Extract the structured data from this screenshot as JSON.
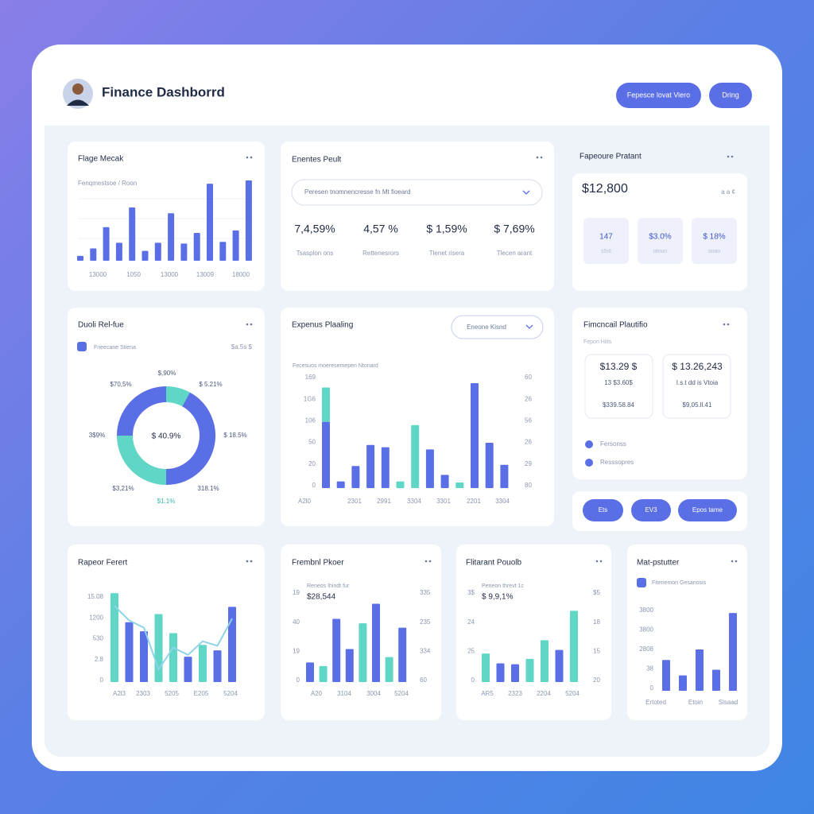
{
  "header": {
    "title": "Finance Dashborrd",
    "buttons": [
      "Fepesce lovat Viero",
      "Dring"
    ]
  },
  "panels": [
    {
      "title": "Flage Mecak",
      "subtitle": "Fenqmestsoe / Roon",
      "chart": {
        "type": "bar",
        "ylim": [
          0,
          100
        ],
        "series": [
          {
            "color": "#5a6fe6",
            "values": [
              6,
              15,
              41,
              22,
              65,
              12,
              22,
              58,
              21,
              34,
              94,
              23,
              37,
              98
            ]
          }
        ],
        "x_labels": [
          "13000",
          "1050",
          "13000",
          "13009",
          "18000"
        ]
      }
    },
    {
      "title": "Enentes Peult",
      "dropdown": "Peresen tnomnencresse fn Mt fioeard",
      "stats": [
        {
          "value": "7,4,59%",
          "label": "Tsasplon ons"
        },
        {
          "value": "4,57 %",
          "label": "Rettenesrors"
        },
        {
          "value": "$ 1,59%",
          "label": "Tlenet risera"
        },
        {
          "value": "$ 7,69%",
          "label": "Tlecen arant"
        }
      ]
    },
    {
      "title": "Fapeoure Pratant",
      "amount": "$12,800",
      "note": "a a ¢",
      "tiles": [
        {
          "value": "147",
          "label": "s5st"
        },
        {
          "value": "$3.0%",
          "label": "otoun"
        },
        {
          "value": "$ 18%",
          "label": "soan"
        }
      ]
    },
    {
      "title": "Duoli Rel-fue",
      "legend": "Fneecane Stiena",
      "note": "$a.5s $",
      "center": "$ 40.9%",
      "labels": [
        "$,90%",
        "$70,5%",
        "$ 5.21%",
        "3$9%",
        "$ 18.5%",
        "$3,21%",
        "318.1%",
        "$1.1%"
      ],
      "chart": {
        "type": "donut",
        "segments": [
          {
            "color": "#5fd6c6",
            "value": 8
          },
          {
            "color": "#5a6fe6",
            "value": 42
          },
          {
            "color": "#5fd6c6",
            "value": 25
          },
          {
            "color": "#5a6fe6",
            "value": 25
          }
        ]
      }
    },
    {
      "title": "Expenus Plaaling",
      "dropdown": "Eneone Kisnd",
      "subtitle": "Fecesuos moeresemepen Ntonard",
      "chart": {
        "type": "bar",
        "ylim": [
          0,
          100
        ],
        "series": [
          {
            "color": "#5a6fe6",
            "values": [
              60,
              6,
              20,
              39,
              37,
              null,
              null,
              35,
              12,
              null,
              95,
              41,
              21
            ]
          },
          {
            "color": "#5fd6c6",
            "values": [
              31,
              null,
              null,
              null,
              null,
              6,
              57,
              null,
              null,
              5,
              null,
              null,
              null
            ]
          }
        ],
        "y_labels": [
          "169",
          "1G6",
          "106",
          "50",
          "20",
          "0"
        ],
        "y2_labels": [
          "60",
          "26",
          "56",
          "26",
          "29",
          "80"
        ],
        "x_labels": [
          "A2l0",
          "2301",
          "2991",
          "3304",
          "3301",
          "2201",
          "3304"
        ]
      }
    },
    {
      "title": "Fimcncail Plautifio",
      "subtitle": "Fepon Hilts",
      "tiles": [
        {
          "lines": [
            "$13.29 $",
            "13 $3.60$",
            "$339.58.84"
          ]
        },
        {
          "lines": [
            "$ 13.26,243",
            "I.s.t dd is Vtoia",
            "$9,05.ll.41"
          ]
        }
      ],
      "legend": [
        "Fersonss",
        "Resssopres"
      ]
    },
    {
      "buttons": [
        "Ets",
        "EV3",
        "Epos tame"
      ]
    },
    {
      "title": "Rapeor Ferert",
      "chart": {
        "type": "bar",
        "ylim": [
          0,
          100
        ],
        "series": [
          {
            "color": "#5a6fe6",
            "values": [
              null,
              66,
              56,
              null,
              null,
              28,
              null,
              35,
              83
            ]
          },
          {
            "color": "#5fd6c6",
            "values": [
              98,
              null,
              null,
              75,
              54,
              null,
              41,
              null,
              null
            ]
          },
          {
            "type": "line",
            "color": "#8fd3e8",
            "values": [
              84,
              68,
              60,
              14,
              38,
              30,
              45,
              40,
              70
            ]
          }
        ],
        "y_labels": [
          "15.08",
          "1200",
          "530",
          "2.8",
          "0"
        ],
        "x_labels": [
          "A2l3",
          "2303",
          "5205",
          "E205",
          "5204"
        ]
      }
    },
    {
      "title": "Frembnl Pkoer",
      "subtitle": "Reneos Ihindt fur",
      "amount": "$28,544",
      "chart": {
        "type": "bar",
        "ylim": [
          0,
          100
        ],
        "series": [
          {
            "color": "#5a6fe6",
            "values": [
              22,
              null,
              71,
              37,
              null,
              88,
              null,
              61
            ]
          },
          {
            "color": "#5fd6c6",
            "values": [
              null,
              18,
              null,
              null,
              66,
              null,
              28,
              null
            ]
          }
        ],
        "y_labels": [
          "19",
          "40",
          "19",
          "0"
        ],
        "y2_labels": [
          "335",
          "235",
          "334",
          "60"
        ],
        "x_labels": [
          "A20",
          "3104",
          "3004",
          "5204"
        ]
      }
    },
    {
      "title": "Flitarant Pouolb",
      "subtitle": "Peneon threvt 1c",
      "amount": "$ 9,9,1%",
      "chart": {
        "type": "bar",
        "ylim": [
          0,
          100
        ],
        "series": [
          {
            "color": "#5a6fe6",
            "values": [
              null,
              21,
              20,
              null,
              null,
              36,
              null
            ]
          },
          {
            "color": "#5fd6c6",
            "values": [
              32,
              null,
              null,
              26,
              47,
              null,
              80
            ]
          }
        ],
        "y_labels": [
          "3$",
          "24",
          "25",
          "0"
        ],
        "y2_labels": [
          "$5",
          "18",
          "15",
          "20"
        ],
        "x_labels": [
          "AR5",
          "2323",
          "2204",
          "5204"
        ]
      }
    },
    {
      "title": "Mat-pstutter",
      "legend": "Fitenemon Gesanosis",
      "chart": {
        "type": "bar",
        "ylim": [
          0,
          100
        ],
        "series": [
          {
            "color": "#5a6fe6",
            "values": [
              38,
              19,
              51,
              26,
              96
            ]
          }
        ],
        "y_labels": [
          "3800",
          "3800",
          "2808",
          "38",
          "0"
        ],
        "x_labels": [
          "Ertoted",
          "Etoin",
          "Slsaad"
        ]
      }
    }
  ]
}
